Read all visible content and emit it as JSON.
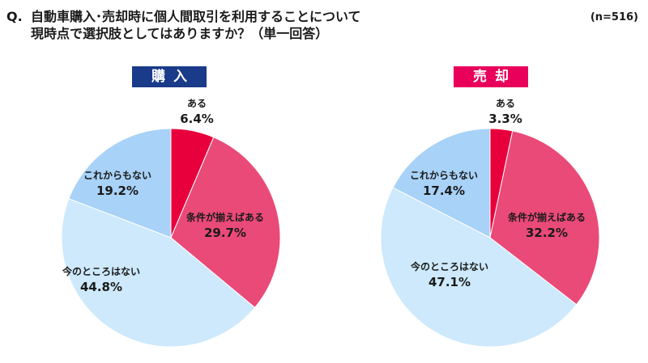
{
  "question": {
    "prefix": "Q.",
    "line1": "自動車購入･売却時に個人間取引を利用することについて",
    "line2": "現時点で選択肢としてはありますか？（単一回答）"
  },
  "sample_size": "(n=516)",
  "chart_data": [
    {
      "type": "pie",
      "title": "購入",
      "title_color": "#1a3a8a",
      "categories": [
        "ある",
        "条件が揃えばある",
        "今のところはない",
        "これからもない"
      ],
      "values": [
        6.4,
        29.7,
        44.8,
        19.2
      ],
      "labels": [
        "6.4%",
        "29.7%",
        "44.8%",
        "19.2%"
      ],
      "colors": [
        "#e8003c",
        "#ea4a78",
        "#cde9fb",
        "#a8d2f7"
      ]
    },
    {
      "type": "pie",
      "title": "売却",
      "title_color": "#e8005a",
      "categories": [
        "ある",
        "条件が揃えばある",
        "今のところはない",
        "これからもない"
      ],
      "values": [
        3.3,
        32.2,
        47.1,
        17.4
      ],
      "labels": [
        "3.3%",
        "32.2%",
        "47.1%",
        "17.4%"
      ],
      "colors": [
        "#e8003c",
        "#ea4a78",
        "#cde9fb",
        "#a8d2f7"
      ]
    }
  ]
}
